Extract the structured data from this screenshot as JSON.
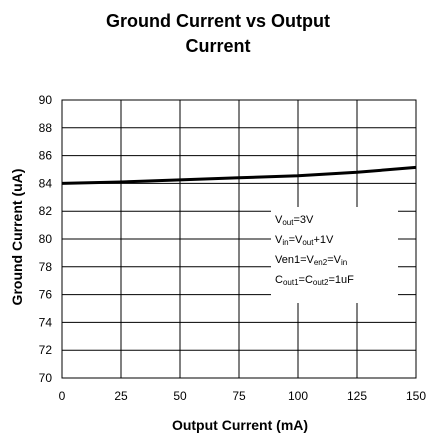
{
  "chart_data": {
    "type": "line",
    "title_lines": [
      "Ground Current vs Output",
      "Current"
    ],
    "xlabel": "Output Current (mA)",
    "ylabel": "Ground Current (uA)",
    "xlim": [
      0,
      150
    ],
    "ylim": [
      70,
      90
    ],
    "x_ticks": [
      0,
      25,
      50,
      75,
      100,
      125,
      150
    ],
    "y_ticks": [
      70,
      72,
      74,
      76,
      78,
      80,
      82,
      84,
      86,
      88,
      90
    ],
    "grid": true,
    "series": [
      {
        "x": [
          0,
          25,
          50,
          75,
          100,
          125,
          150
        ],
        "y": [
          84.0,
          84.1,
          84.25,
          84.4,
          84.55,
          84.8,
          85.15
        ],
        "color": "#000000"
      }
    ],
    "annotations": [
      [
        {
          "t": "V"
        },
        {
          "t": "out",
          "sub": true
        },
        {
          "t": "=3V"
        }
      ],
      [
        {
          "t": "V"
        },
        {
          "t": "in",
          "sub": true
        },
        {
          "t": "=V"
        },
        {
          "t": "out",
          "sub": true
        },
        {
          "t": "+1V"
        }
      ],
      [
        {
          "t": "Ven1=V"
        },
        {
          "t": "en2",
          "sub": true
        },
        {
          "t": "=V"
        },
        {
          "t": "in",
          "sub": true
        }
      ],
      [
        {
          "t": "C"
        },
        {
          "t": "out1",
          "sub": true
        },
        {
          "t": "=C"
        },
        {
          "t": "out2",
          "sub": true
        },
        {
          "t": "=1uF"
        }
      ]
    ]
  }
}
